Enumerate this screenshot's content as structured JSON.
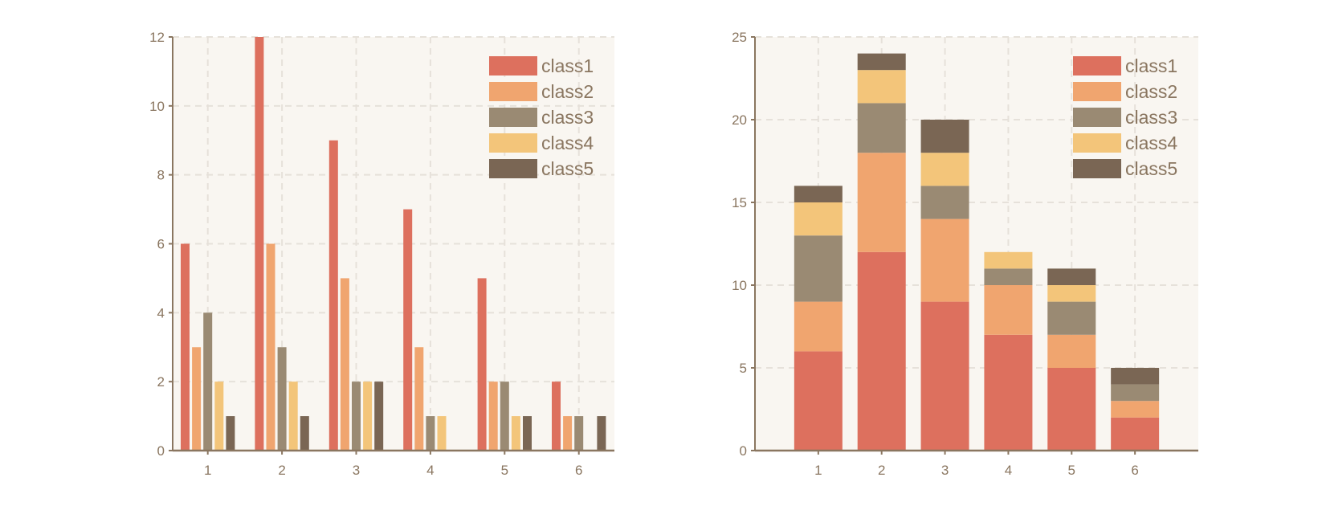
{
  "colors": {
    "background": "#ffffff",
    "plot_bg": "#f9f6f1",
    "grid": "#e6e1da",
    "axis": "#8a7660",
    "tick_text": "#8a7660",
    "series": [
      "#dd705e",
      "#f0a56f",
      "#9a8a73",
      "#f3c57a",
      "#7a6654"
    ]
  },
  "chart_data": [
    {
      "type": "bar",
      "mode": "grouped",
      "title": "",
      "xlabel": "",
      "ylabel": "",
      "categories": [
        "1",
        "2",
        "3",
        "4",
        "5",
        "6"
      ],
      "ylim": [
        0,
        12
      ],
      "yticks": [
        0,
        2,
        4,
        6,
        8,
        10,
        12
      ],
      "grid": true,
      "legend_position": "top-right",
      "series": [
        {
          "name": "class1",
          "values": [
            6,
            12,
            9,
            7,
            5,
            2
          ]
        },
        {
          "name": "class2",
          "values": [
            3,
            6,
            5,
            3,
            2,
            1
          ]
        },
        {
          "name": "class3",
          "values": [
            4,
            3,
            2,
            1,
            2,
            1
          ]
        },
        {
          "name": "class4",
          "values": [
            2,
            2,
            2,
            1,
            1,
            0
          ]
        },
        {
          "name": "class5",
          "values": [
            1,
            1,
            2,
            0,
            1,
            1
          ]
        }
      ]
    },
    {
      "type": "bar",
      "mode": "stacked",
      "title": "",
      "xlabel": "",
      "ylabel": "",
      "categories": [
        "1",
        "2",
        "3",
        "4",
        "5",
        "6"
      ],
      "xlim": [
        0,
        7
      ],
      "ylim": [
        0,
        25
      ],
      "yticks": [
        0,
        5,
        10,
        15,
        20,
        25
      ],
      "grid": true,
      "legend_position": "top-right",
      "series": [
        {
          "name": "class1",
          "values": [
            6,
            12,
            9,
            7,
            5,
            2
          ]
        },
        {
          "name": "class2",
          "values": [
            3,
            6,
            5,
            3,
            2,
            1
          ]
        },
        {
          "name": "class3",
          "values": [
            4,
            3,
            2,
            1,
            2,
            1
          ]
        },
        {
          "name": "class4",
          "values": [
            2,
            2,
            2,
            1,
            1,
            0
          ]
        },
        {
          "name": "class5",
          "values": [
            1,
            1,
            2,
            0,
            1,
            1
          ]
        }
      ]
    }
  ]
}
